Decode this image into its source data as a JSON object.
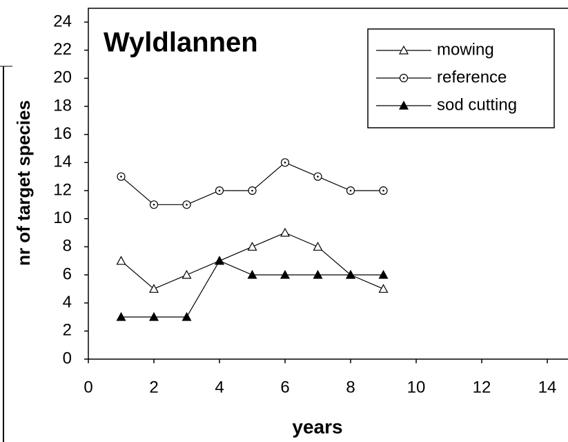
{
  "chart_data": {
    "type": "line",
    "title": "Wyldlannen",
    "xlabel": "years",
    "ylabel": "nr of target species",
    "x": [
      1,
      2,
      3,
      4,
      5,
      6,
      7,
      8,
      9
    ],
    "series": [
      {
        "name": "mowing",
        "color": "#000000",
        "marker": "open-triangle",
        "values": [
          7,
          5,
          6,
          7,
          8,
          9,
          8,
          6,
          5
        ]
      },
      {
        "name": "reference",
        "color": "#000000",
        "marker": "dotted-circle",
        "values": [
          13,
          11,
          11,
          12,
          12,
          14,
          13,
          12,
          12
        ]
      },
      {
        "name": "sod cutting",
        "color": "#000000",
        "marker": "filled-triangle",
        "values": [
          3,
          3,
          3,
          7,
          6,
          6,
          6,
          6,
          6
        ]
      }
    ],
    "xlim": [
      0,
      14
    ],
    "xticks": [
      0,
      2,
      4,
      6,
      8,
      10,
      12,
      14
    ],
    "ylim": [
      0,
      24
    ],
    "yticks": [
      0,
      2,
      4,
      6,
      8,
      10,
      12,
      14,
      16,
      18,
      20,
      22,
      24
    ],
    "legend": "upper right"
  }
}
